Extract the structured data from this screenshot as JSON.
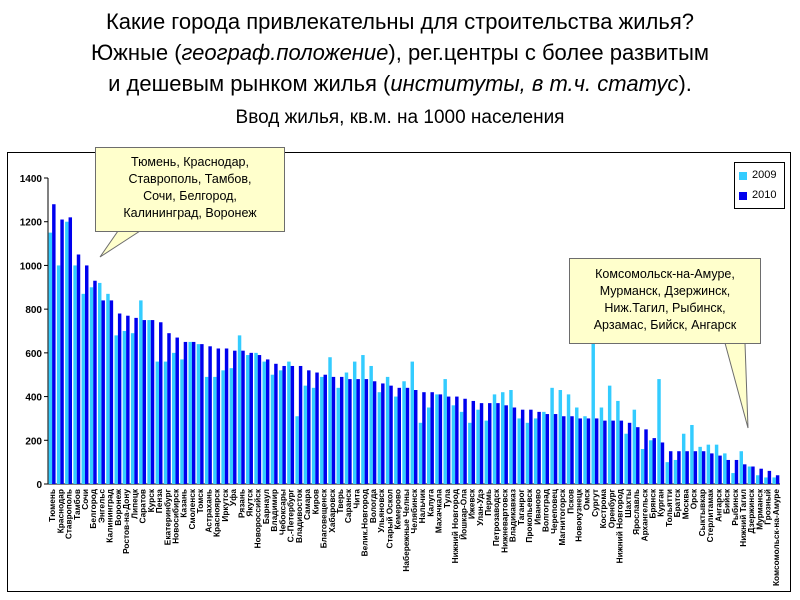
{
  "header": {
    "title_line1": "Какие города привлекательны для строительства жилья?",
    "title_line2_pre": "Южные (",
    "title_line2_italic": "географ.положение",
    "title_line2_post": "), рег.центры с более развитым",
    "title_line3_pre": "и дешевым рынком жилья (",
    "title_line3_italic": "институты, в т.ч. статус",
    "title_line3_post": ").",
    "subtitle": "Ввод жилья, кв.м. на 1000 населения"
  },
  "callouts": {
    "top_left": "Тюмень, Краснодар,\nСтаврополь, Тамбов,\nСочи, Белгород,\nКалининград, Воронеж",
    "right": "Комсомольск-на-Амуре,\nМурманск, Дзержинск,\nНиж.Тагил, Рыбинск,\nАрзамас, Бийск, Ангарск"
  },
  "colors": {
    "series_2009": "#33ccff",
    "series_2010": "#0000ee"
  },
  "chart_data": {
    "type": "bar",
    "title": "Ввод жилья, кв.м. на 1000 населения",
    "ylim": [
      0,
      1400
    ],
    "yticks": [
      0,
      200,
      400,
      600,
      800,
      1000,
      1200,
      1400
    ],
    "grid": false,
    "legend_position": "top-right",
    "categories": [
      "Тюмень",
      "Краснодар",
      "Ставрополь",
      "Тамбов",
      "Сочи",
      "Белгород",
      "Энгельс",
      "Калининград",
      "Воронеж",
      "Ростов-на-Дону",
      "Липецк",
      "Саратов",
      "Курск",
      "Пенза",
      "Екатеринбург",
      "Новосибирск",
      "Казань",
      "Смоленск",
      "Томск",
      "Астрахань",
      "Красноярск",
      "Иркутск",
      "Уфа",
      "Рязань",
      "Якутск",
      "Новороссийск",
      "Барнаул",
      "Владимир",
      "Чебоксары",
      "С.-Петербург",
      "Владивосток",
      "Самара",
      "Киров",
      "Благовещенск",
      "Хабаровск",
      "Тверь",
      "Саранск",
      "Чита",
      "Велик.Новгород",
      "Вологда",
      "Ульяновск",
      "Старый Оскол",
      "Кемерово",
      "Набережные Челны",
      "Челябинск",
      "Нальчик",
      "Калуга",
      "Махачкала",
      "Тула",
      "Нижний Новгород",
      "Йошкар-Ола",
      "Ижевск",
      "Улан-Удэ",
      "Пермь",
      "Петрозаводск",
      "Нижневартовск",
      "Владикавказ",
      "Таганрог",
      "Прокопьевск",
      "Иваново",
      "Волгоград",
      "Череповец",
      "Магнитогорск",
      "Псков",
      "Новокузнецк",
      "Омск",
      "Сургут",
      "Кострома",
      "Оренбург",
      "Нижний Новгород",
      "Шахты",
      "Ярославль",
      "Архангельск",
      "Брянск",
      "Курган",
      "Тольятти",
      "Братск",
      "Москва",
      "Орск",
      "Сыктывкар",
      "Стерлитамак",
      "Ангарск",
      "Бийск",
      "Рыбинск",
      "Нижний Тагил",
      "Дзержинск",
      "Мурманск",
      "Грозный",
      "Комсомольск-на-Амуре"
    ],
    "series": [
      {
        "name": "2009",
        "values": [
          1150,
          1000,
          1200,
          1000,
          870,
          900,
          920,
          870,
          680,
          700,
          690,
          840,
          750,
          560,
          560,
          600,
          570,
          650,
          640,
          490,
          490,
          520,
          530,
          680,
          590,
          600,
          560,
          500,
          520,
          560,
          310,
          450,
          440,
          490,
          580,
          440,
          510,
          560,
          590,
          540,
          420,
          490,
          400,
          470,
          560,
          280,
          350,
          410,
          480,
          360,
          330,
          280,
          340,
          290,
          410,
          420,
          430,
          300,
          280,
          300,
          330,
          440,
          430,
          410,
          350,
          310,
          650,
          350,
          450,
          380,
          230,
          340,
          160,
          200,
          480,
          100,
          110,
          230,
          270,
          170,
          180,
          180,
          140,
          50,
          150,
          80,
          40,
          30,
          30
        ]
      },
      {
        "name": "2010",
        "values": [
          1280,
          1210,
          1220,
          1050,
          1000,
          930,
          840,
          840,
          780,
          770,
          760,
          750,
          750,
          740,
          690,
          670,
          650,
          650,
          640,
          630,
          620,
          620,
          610,
          610,
          600,
          590,
          570,
          550,
          540,
          540,
          540,
          520,
          510,
          500,
          490,
          490,
          480,
          480,
          480,
          470,
          460,
          450,
          440,
          440,
          430,
          420,
          420,
          410,
          400,
          400,
          390,
          380,
          370,
          370,
          370,
          360,
          350,
          340,
          340,
          330,
          320,
          320,
          310,
          310,
          300,
          300,
          300,
          290,
          290,
          290,
          280,
          260,
          250,
          210,
          190,
          150,
          150,
          150,
          150,
          150,
          140,
          130,
          110,
          110,
          90,
          80,
          70,
          60,
          40
        ]
      }
    ]
  },
  "legend": {
    "item_2009": "2009",
    "item_2010": "2010"
  }
}
